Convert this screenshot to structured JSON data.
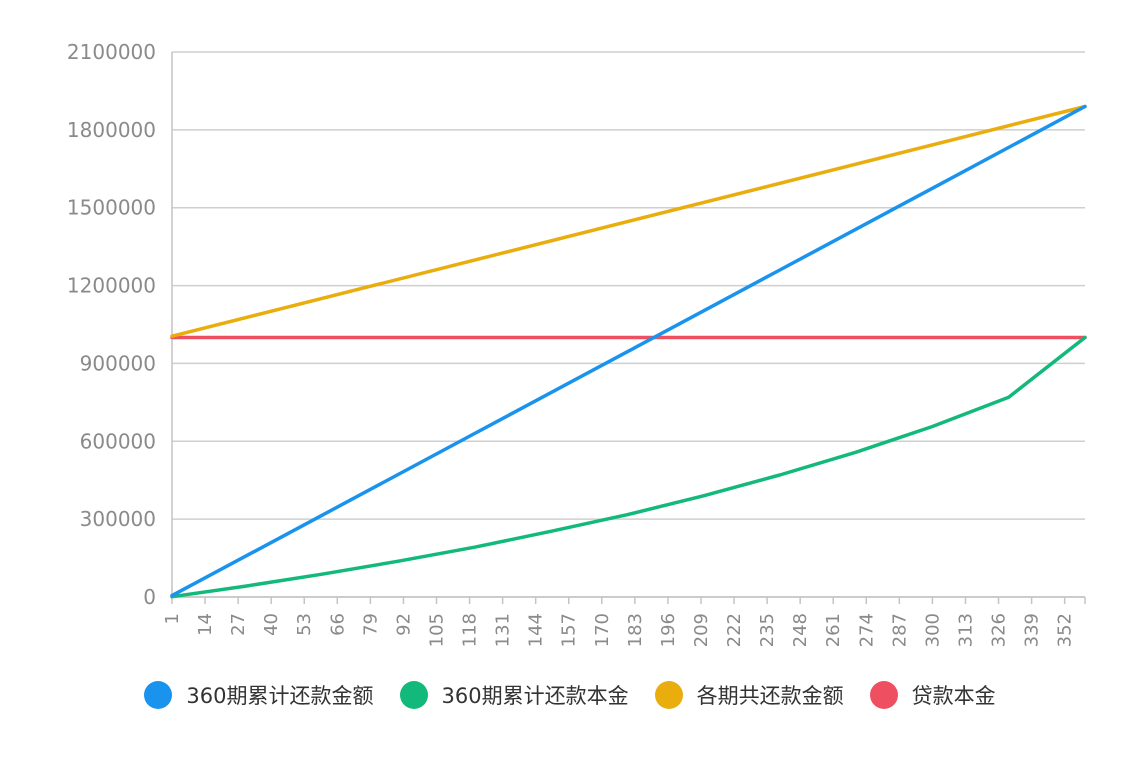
{
  "chart_data": {
    "type": "line",
    "x_start": 1,
    "x_end": 360,
    "x_tick_labels": [
      "1",
      "14",
      "27",
      "40",
      "53",
      "66",
      "79",
      "92",
      "105",
      "118",
      "131",
      "144",
      "157",
      "170",
      "183",
      "196",
      "209",
      "222",
      "235",
      "248",
      "261",
      "274",
      "287",
      "300",
      "313",
      "326",
      "339",
      "352"
    ],
    "y_tick_labels": [
      "0",
      "300000",
      "600000",
      "900000",
      "1200000",
      "1500000",
      "1800000",
      "2100000"
    ],
    "ylim": [
      0,
      2100000
    ],
    "grid": true,
    "legend_position": "bottom",
    "series": [
      {
        "name": "360期累计还款金额",
        "color": "#1a93ee",
        "x": [
          1,
          60,
          120,
          180,
          240,
          300,
          360
        ],
        "values": [
          5250,
          315000,
          630000,
          945000,
          1260000,
          1575000,
          1890000
        ]
      },
      {
        "name": "360期累计还款本金",
        "color": "#12b97b",
        "x": [
          1,
          30,
          60,
          90,
          120,
          150,
          180,
          210,
          240,
          270,
          300,
          330,
          360
        ],
        "values": [
          1200,
          42000,
          88000,
          138000,
          192000,
          253000,
          317000,
          390000,
          470000,
          558000,
          657000,
          770000,
          1000000
        ]
      },
      {
        "name": "各期共还款金额",
        "color": "#e9ad0e",
        "x": [
          1,
          360
        ],
        "values": [
          1005000,
          1890000
        ]
      },
      {
        "name": "贷款本金",
        "color": "#ee5062",
        "x": [
          1,
          360
        ],
        "values": [
          1000000,
          1000000
        ]
      }
    ]
  }
}
